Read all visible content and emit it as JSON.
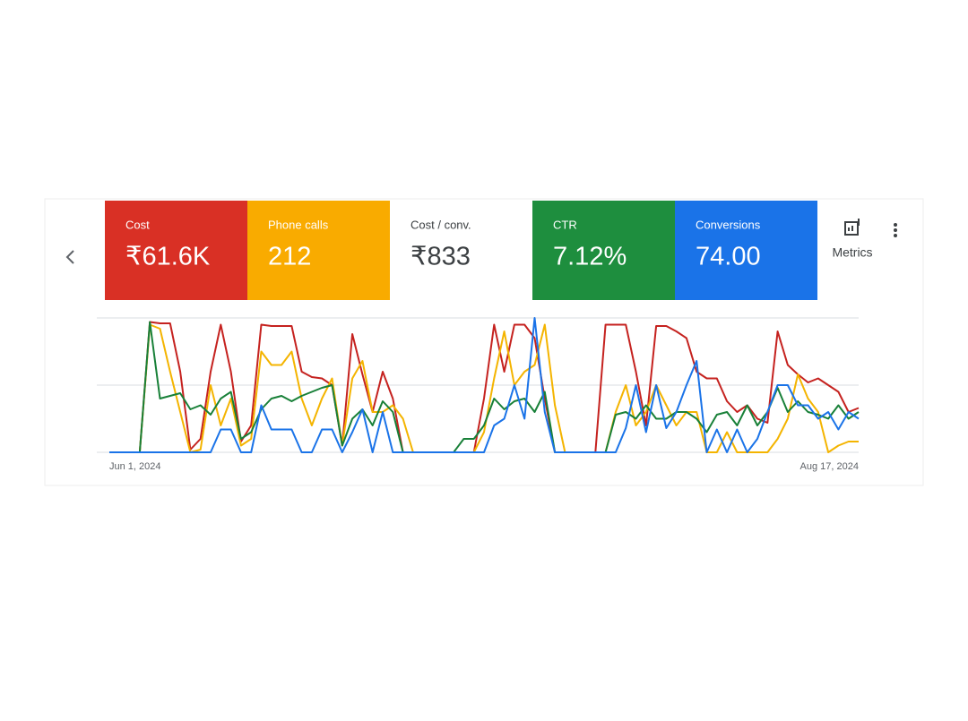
{
  "metric_cards": [
    {
      "label": "Cost",
      "value": "₹61.6K",
      "color": "#d93025"
    },
    {
      "label": "Phone calls",
      "value": "212",
      "color": "#f9ab00"
    },
    {
      "label": "Cost / conv.",
      "value": "₹833",
      "color": "#ffffff"
    },
    {
      "label": "CTR",
      "value": "7.12%",
      "color": "#1e8e3e"
    },
    {
      "label": "Conversions",
      "value": "74.00",
      "color": "#1a73e8"
    }
  ],
  "metrics_button": "Metrics",
  "chart_data": {
    "type": "line",
    "x_labels": [
      "Jun 1, 2024",
      "Aug 17, 2024"
    ],
    "ylim": [
      0,
      100
    ],
    "yticks": [
      0,
      50,
      100
    ],
    "grid": true,
    "series": [
      {
        "color": "#c5221f",
        "values": [
          0,
          0,
          0,
          0,
          97,
          96,
          96,
          60,
          2,
          10,
          60,
          95,
          60,
          8,
          20,
          95,
          94,
          94,
          94,
          60,
          56,
          55,
          50,
          5,
          88,
          58,
          30,
          60,
          40,
          0,
          0,
          0,
          0,
          0,
          0,
          0,
          0,
          40,
          95,
          60,
          95,
          95,
          85,
          40,
          0,
          0,
          0,
          0,
          0,
          95,
          95,
          95,
          60,
          20,
          94,
          94,
          90,
          85,
          60,
          55,
          55,
          38,
          30,
          35,
          25,
          22,
          90,
          65,
          58,
          52,
          55,
          50,
          45,
          30,
          33
        ]
      },
      {
        "color": "#f4b400",
        "values": [
          0,
          0,
          0,
          0,
          95,
          92,
          60,
          30,
          0,
          2,
          50,
          20,
          40,
          5,
          10,
          75,
          65,
          65,
          75,
          40,
          20,
          40,
          55,
          5,
          55,
          68,
          30,
          30,
          35,
          25,
          0,
          0,
          0,
          0,
          0,
          0,
          0,
          15,
          55,
          90,
          50,
          60,
          65,
          95,
          35,
          0,
          0,
          0,
          0,
          0,
          30,
          50,
          20,
          30,
          50,
          35,
          20,
          30,
          30,
          0,
          0,
          15,
          0,
          0,
          0,
          0,
          10,
          25,
          58,
          40,
          30,
          0,
          5,
          8,
          8
        ]
      },
      {
        "color": "#188038",
        "values": [
          0,
          0,
          0,
          0,
          97,
          40,
          42,
          44,
          32,
          35,
          28,
          40,
          45,
          10,
          15,
          32,
          40,
          42,
          38,
          42,
          45,
          48,
          50,
          5,
          25,
          32,
          20,
          38,
          30,
          0,
          0,
          0,
          0,
          0,
          0,
          10,
          10,
          20,
          40,
          32,
          38,
          40,
          30,
          45,
          0,
          0,
          0,
          0,
          0,
          0,
          28,
          30,
          25,
          35,
          25,
          25,
          30,
          30,
          25,
          15,
          28,
          30,
          20,
          35,
          20,
          30,
          48,
          30,
          38,
          30,
          28,
          25,
          35,
          25,
          30
        ]
      },
      {
        "color": "#1a73e8",
        "values": [
          0,
          0,
          0,
          0,
          0,
          0,
          0,
          0,
          0,
          0,
          0,
          17,
          17,
          0,
          0,
          35,
          17,
          17,
          17,
          0,
          0,
          17,
          17,
          0,
          15,
          32,
          0,
          30,
          0,
          0,
          0,
          0,
          0,
          0,
          0,
          0,
          0,
          0,
          20,
          25,
          50,
          25,
          100,
          30,
          0,
          0,
          0,
          0,
          0,
          0,
          0,
          18,
          50,
          15,
          50,
          18,
          30,
          50,
          68,
          0,
          17,
          0,
          17,
          0,
          10,
          30,
          50,
          50,
          35,
          35,
          25,
          30,
          17,
          30,
          25
        ]
      }
    ]
  }
}
